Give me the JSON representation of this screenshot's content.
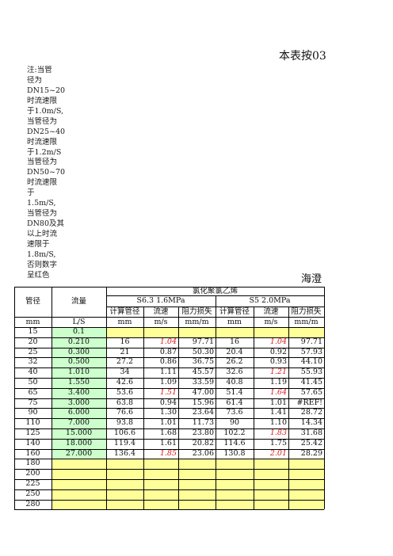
{
  "title": "本表按03",
  "note_lines": [
    "注:当管",
    "径为",
    "DN15~20",
    "时流速限",
    "于1.0m/S,",
    "当管径为",
    "DN25~40",
    "时流速限",
    "于1.2m/S",
    "当管径为",
    "DN50~70",
    "时流速限",
    "于",
    "1.5m/S,",
    "当管径为",
    "DN80及其",
    "以上时流",
    "速限于",
    "1.8m/S,",
    "否则数字",
    "呈红色"
  ],
  "subtitle": "海澄",
  "header": {
    "pipe_diameter": "管径",
    "flow": "流量",
    "material": "氯化聚氯乙烯",
    "group1": "S6.3   1.6MPa",
    "group2": "S5    2.0MPa",
    "calc_dia": "计算管径",
    "velocity": "流速",
    "head_loss": "阻力损失"
  },
  "units": [
    "mm",
    "L/S",
    "mm",
    "m/s",
    "mm/m",
    "mm",
    "m/s",
    "mm/m"
  ],
  "rows": [
    {
      "dn": "15",
      "q": "0.1",
      "d1": "",
      "v1": "",
      "v1_red": false,
      "h1": "",
      "d2": "",
      "v2": "",
      "v2_red": false,
      "h2": ""
    },
    {
      "dn": "20",
      "q": "0.210",
      "d1": "16",
      "v1": "1.04",
      "v1_red": true,
      "h1": "97.71",
      "d2": "16",
      "v2": "1.04",
      "v2_red": true,
      "h2": "97.71"
    },
    {
      "dn": "25",
      "q": "0.300",
      "d1": "21",
      "v1": "0.87",
      "v1_red": false,
      "h1": "50.30",
      "d2": "20.4",
      "v2": "0.92",
      "v2_red": false,
      "h2": "57.93"
    },
    {
      "dn": "32",
      "q": "0.500",
      "d1": "27.2",
      "v1": "0.86",
      "v1_red": false,
      "h1": "36.75",
      "d2": "26.2",
      "v2": "0.93",
      "v2_red": false,
      "h2": "44.10"
    },
    {
      "dn": "40",
      "q": "1.010",
      "d1": "34",
      "v1": "1.11",
      "v1_red": false,
      "h1": "45.57",
      "d2": "32.6",
      "v2": "1.21",
      "v2_red": true,
      "h2": "55.93"
    },
    {
      "dn": "50",
      "q": "1.550",
      "d1": "42.6",
      "v1": "1.09",
      "v1_red": false,
      "h1": "33.59",
      "d2": "40.8",
      "v2": "1.19",
      "v2_red": false,
      "h2": "41.45"
    },
    {
      "dn": "65",
      "q": "3.400",
      "d1": "53.6",
      "v1": "1.51",
      "v1_red": true,
      "h1": "47.00",
      "d2": "51.4",
      "v2": "1.64",
      "v2_red": true,
      "h2": "57.65"
    },
    {
      "dn": "75",
      "q": "3.000",
      "d1": "63.8",
      "v1": "0.94",
      "v1_red": false,
      "h1": "15.96",
      "d2": "61.4",
      "v2": "1.01",
      "v2_red": false,
      "h2": "#REF!"
    },
    {
      "dn": "90",
      "q": "6.000",
      "d1": "76.6",
      "v1": "1.30",
      "v1_red": false,
      "h1": "23.64",
      "d2": "73.6",
      "v2": "1.41",
      "v2_red": false,
      "h2": "28.72"
    },
    {
      "dn": "110",
      "q": "7.000",
      "d1": "93.8",
      "v1": "1.01",
      "v1_red": false,
      "h1": "11.73",
      "d2": "90",
      "v2": "1.10",
      "v2_red": false,
      "h2": "14.34"
    },
    {
      "dn": "125",
      "q": "15.000",
      "d1": "106.6",
      "v1": "1.68",
      "v1_red": false,
      "h1": "23.80",
      "d2": "102.2",
      "v2": "1.83",
      "v2_red": true,
      "h2": "31.68"
    },
    {
      "dn": "140",
      "q": "18.000",
      "d1": "119.4",
      "v1": "1.61",
      "v1_red": false,
      "h1": "20.82",
      "d2": "114.6",
      "v2": "1.75",
      "v2_red": false,
      "h2": "25.42"
    },
    {
      "dn": "160",
      "q": "27.000",
      "d1": "136.4",
      "v1": "1.85",
      "v1_red": true,
      "h1": "23.06",
      "d2": "130.8",
      "v2": "2.01",
      "v2_red": true,
      "h2": "28.29"
    },
    {
      "dn": "180",
      "q": "",
      "d1": "",
      "v1": "",
      "v1_red": false,
      "h1": "",
      "d2": "",
      "v2": "",
      "v2_red": false,
      "h2": ""
    },
    {
      "dn": "200",
      "q": "",
      "d1": "",
      "v1": "",
      "v1_red": false,
      "h1": "",
      "d2": "",
      "v2": "",
      "v2_red": false,
      "h2": ""
    },
    {
      "dn": "225",
      "q": "",
      "d1": "",
      "v1": "",
      "v1_red": false,
      "h1": "",
      "d2": "",
      "v2": "",
      "v2_red": false,
      "h2": ""
    },
    {
      "dn": "250",
      "q": "",
      "d1": "",
      "v1": "",
      "v1_red": false,
      "h1": "",
      "d2": "",
      "v2": "",
      "v2_red": false,
      "h2": ""
    },
    {
      "dn": "280",
      "q": "",
      "d1": "",
      "v1": "",
      "v1_red": false,
      "h1": "",
      "d2": "",
      "v2": "",
      "v2_red": false,
      "h2": ""
    }
  ]
}
